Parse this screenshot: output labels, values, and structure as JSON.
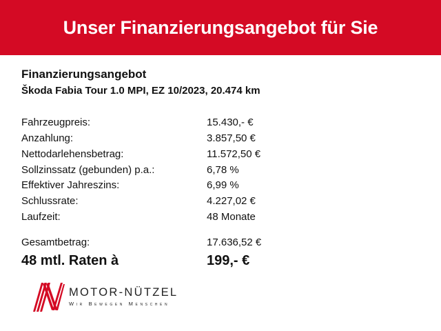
{
  "header": {
    "title": "Unser Finanzierungsangebot für Sie",
    "color": "#d40a24"
  },
  "offer": {
    "heading": "Finanzierungsangebot",
    "vehicle": "Škoda Fabia Tour 1.0 MPI, EZ 10/2023, 20.474 km",
    "rows": [
      {
        "label": "Fahrzeugpreis:",
        "value": "15.430,- €"
      },
      {
        "label": "Anzahlung:",
        "value": "3.857,50 €"
      },
      {
        "label": "Nettodarlehensbetrag:",
        "value": "11.572,50 €"
      },
      {
        "label": "Sollzinssatz (gebunden) p.a.:",
        "value": "6,78 %"
      },
      {
        "label": "Effektiver Jahreszins:",
        "value": "6,99 %"
      },
      {
        "label": "Schlussrate:",
        "value": "4.227,02 €"
      },
      {
        "label": "Laufzeit:",
        "value": "48 Monate"
      }
    ],
    "total": {
      "label": "Gesamtbetrag:",
      "value": "17.636,52 €"
    },
    "rate": {
      "label": "48 mtl. Raten à",
      "value": "199,- €"
    }
  },
  "logo": {
    "name": "MOTOR-NÜTZEL",
    "slogan": "Wir Bewegen Menschen"
  }
}
